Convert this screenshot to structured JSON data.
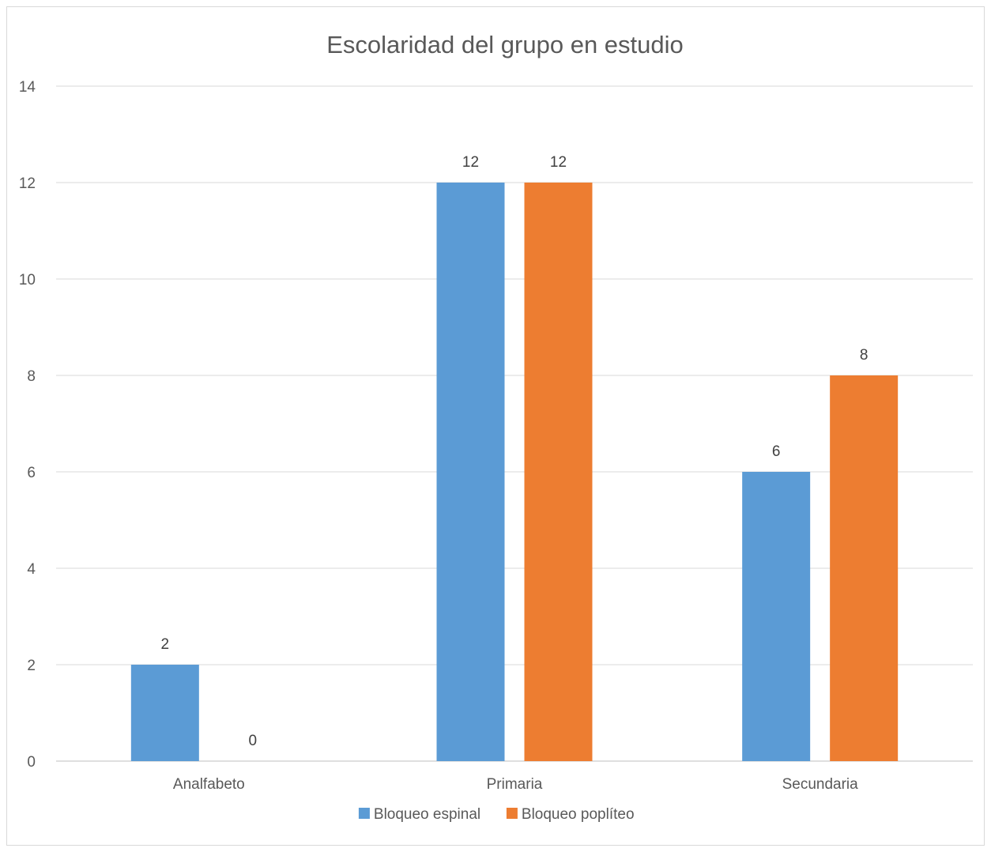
{
  "chart_data": {
    "type": "bar",
    "title": "Escolaridad del grupo en estudio",
    "categories": [
      "Analfabeto",
      "Primaria",
      "Secundaria"
    ],
    "series": [
      {
        "name": "Bloqueo espinal",
        "values": [
          2,
          12,
          6
        ],
        "color": "#5b9bd5"
      },
      {
        "name": "Bloqueo poplíteo",
        "values": [
          0,
          12,
          8
        ],
        "color": "#ed7d31"
      }
    ],
    "ylim": [
      0,
      14
    ],
    "yticks": [
      0,
      2,
      4,
      6,
      8,
      10,
      12,
      14
    ],
    "grid": true,
    "legend_position": "bottom",
    "data_labels": true,
    "colors": {
      "grid": "#d9d9d9",
      "axis": "#bfbfbf",
      "text": "#595959",
      "label": "#404040",
      "title": "#595959"
    }
  }
}
